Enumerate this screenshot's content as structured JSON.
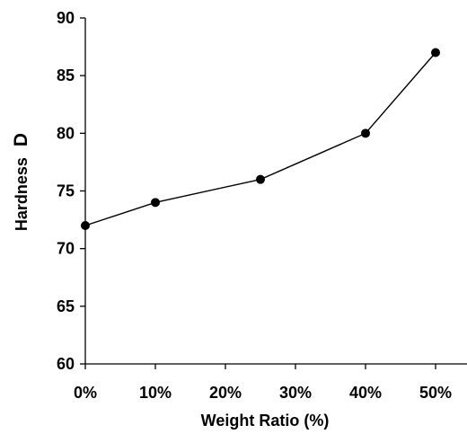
{
  "chart_data": {
    "type": "line",
    "x_categories": [
      "0%",
      "10%",
      "20%",
      "30%",
      "40%",
      "50%"
    ],
    "x_values": [
      0,
      10,
      20,
      30,
      40,
      50
    ],
    "xlim": [
      0,
      50
    ],
    "ylim": [
      60,
      90
    ],
    "y_ticks": [
      60,
      65,
      70,
      75,
      80,
      85,
      90
    ],
    "xlabel": "Weight Ratio (%)",
    "ylabel_main": "Hardness",
    "ylabel_unit": "D",
    "series": [
      {
        "points": [
          {
            "x": 0,
            "y": 72
          },
          {
            "x": 10,
            "y": 74
          },
          {
            "x": 25,
            "y": 76
          },
          {
            "x": 40,
            "y": 80
          },
          {
            "x": 50,
            "y": 87
          }
        ]
      }
    ],
    "grid": false,
    "line_color": "#000000",
    "marker_color": "#000000"
  }
}
